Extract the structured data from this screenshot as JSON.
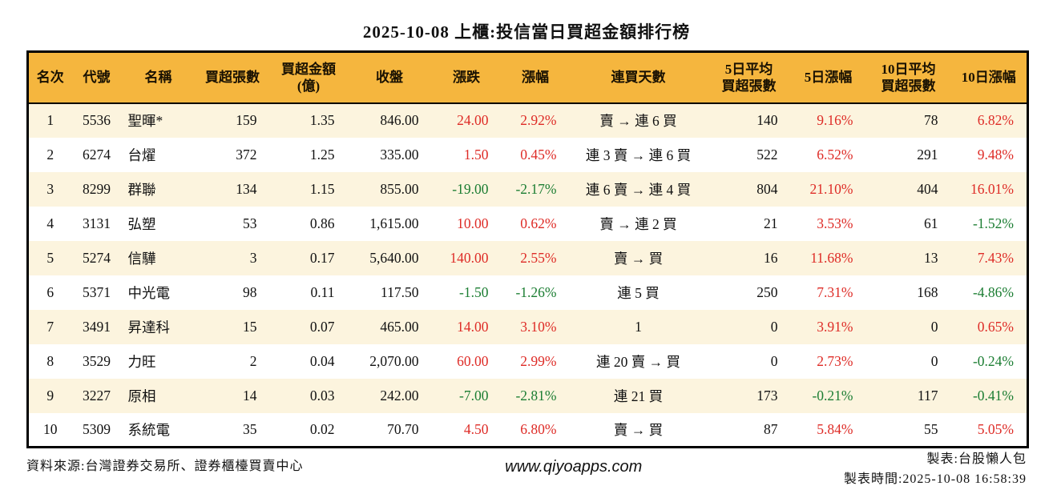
{
  "title": "2025-10-08 上櫃:投信當日買超金額排行榜",
  "colors": {
    "header_bg": "#F5B63E",
    "row_alt_bg": "#FCF4DE",
    "up_red": "#DE2B26",
    "down_green": "#1B7D32"
  },
  "table": {
    "columns": [
      {
        "key": "rank",
        "label": "名次",
        "align": "center"
      },
      {
        "key": "code",
        "label": "代號",
        "align": "center"
      },
      {
        "key": "name",
        "label": "名稱",
        "align": "left"
      },
      {
        "key": "net_buy_lots",
        "label": "買超張數",
        "align": "right"
      },
      {
        "key": "net_buy_amount",
        "label": "買超金額\n(億)",
        "align": "right"
      },
      {
        "key": "close",
        "label": "收盤",
        "align": "right"
      },
      {
        "key": "change",
        "label": "漲跌",
        "align": "right",
        "signed": true
      },
      {
        "key": "change_pct",
        "label": "漲幅",
        "align": "right",
        "signed": true
      },
      {
        "key": "streak",
        "label": "連買天數",
        "align": "center"
      },
      {
        "key": "d5_avg_lots",
        "label": "5日平均\n買超張數",
        "align": "right"
      },
      {
        "key": "d5_pct",
        "label": "5日漲幅",
        "align": "right",
        "signed": true
      },
      {
        "key": "d10_avg_lots",
        "label": "10日平均\n買超張數",
        "align": "right"
      },
      {
        "key": "d10_pct",
        "label": "10日漲幅",
        "align": "right",
        "signed": true
      }
    ],
    "rows": [
      {
        "rank": "1",
        "code": "5536",
        "name": "聖暉*",
        "net_buy_lots": "159",
        "net_buy_amount": "1.35",
        "close": "846.00",
        "change": "24.00",
        "change_pct": "2.92%",
        "streak": "賣 → 連 6 買",
        "d5_avg_lots": "140",
        "d5_pct": "9.16%",
        "d10_avg_lots": "78",
        "d10_pct": "6.82%"
      },
      {
        "rank": "2",
        "code": "6274",
        "name": "台燿",
        "net_buy_lots": "372",
        "net_buy_amount": "1.25",
        "close": "335.00",
        "change": "1.50",
        "change_pct": "0.45%",
        "streak": "連 3 賣 → 連 6 買",
        "d5_avg_lots": "522",
        "d5_pct": "6.52%",
        "d10_avg_lots": "291",
        "d10_pct": "9.48%"
      },
      {
        "rank": "3",
        "code": "8299",
        "name": "群聯",
        "net_buy_lots": "134",
        "net_buy_amount": "1.15",
        "close": "855.00",
        "change": "-19.00",
        "change_pct": "-2.17%",
        "streak": "連 6 賣 → 連 4 買",
        "d5_avg_lots": "804",
        "d5_pct": "21.10%",
        "d10_avg_lots": "404",
        "d10_pct": "16.01%"
      },
      {
        "rank": "4",
        "code": "3131",
        "name": "弘塑",
        "net_buy_lots": "53",
        "net_buy_amount": "0.86",
        "close": "1,615.00",
        "change": "10.00",
        "change_pct": "0.62%",
        "streak": "賣 → 連 2 買",
        "d5_avg_lots": "21",
        "d5_pct": "3.53%",
        "d10_avg_lots": "61",
        "d10_pct": "-1.52%"
      },
      {
        "rank": "5",
        "code": "5274",
        "name": "信驊",
        "net_buy_lots": "3",
        "net_buy_amount": "0.17",
        "close": "5,640.00",
        "change": "140.00",
        "change_pct": "2.55%",
        "streak": "賣 → 買",
        "d5_avg_lots": "16",
        "d5_pct": "11.68%",
        "d10_avg_lots": "13",
        "d10_pct": "7.43%"
      },
      {
        "rank": "6",
        "code": "5371",
        "name": "中光電",
        "net_buy_lots": "98",
        "net_buy_amount": "0.11",
        "close": "117.50",
        "change": "-1.50",
        "change_pct": "-1.26%",
        "streak": "連 5 買",
        "d5_avg_lots": "250",
        "d5_pct": "7.31%",
        "d10_avg_lots": "168",
        "d10_pct": "-4.86%"
      },
      {
        "rank": "7",
        "code": "3491",
        "name": "昇達科",
        "net_buy_lots": "15",
        "net_buy_amount": "0.07",
        "close": "465.00",
        "change": "14.00",
        "change_pct": "3.10%",
        "streak": "1",
        "d5_avg_lots": "0",
        "d5_pct": "3.91%",
        "d10_avg_lots": "0",
        "d10_pct": "0.65%"
      },
      {
        "rank": "8",
        "code": "3529",
        "name": "力旺",
        "net_buy_lots": "2",
        "net_buy_amount": "0.04",
        "close": "2,070.00",
        "change": "60.00",
        "change_pct": "2.99%",
        "streak": "連 20 賣 → 買",
        "d5_avg_lots": "0",
        "d5_pct": "2.73%",
        "d10_avg_lots": "0",
        "d10_pct": "-0.24%"
      },
      {
        "rank": "9",
        "code": "3227",
        "name": "原相",
        "net_buy_lots": "14",
        "net_buy_amount": "0.03",
        "close": "242.00",
        "change": "-7.00",
        "change_pct": "-2.81%",
        "streak": "連 21 買",
        "d5_avg_lots": "173",
        "d5_pct": "-0.21%",
        "d10_avg_lots": "117",
        "d10_pct": "-0.41%"
      },
      {
        "rank": "10",
        "code": "5309",
        "name": "系統電",
        "net_buy_lots": "35",
        "net_buy_amount": "0.02",
        "close": "70.70",
        "change": "4.50",
        "change_pct": "6.80%",
        "streak": "賣 → 買",
        "d5_avg_lots": "87",
        "d5_pct": "5.84%",
        "d10_avg_lots": "55",
        "d10_pct": "5.05%"
      }
    ]
  },
  "footer": {
    "source": "資料來源:台灣證券交易所、證券櫃檯買賣中心",
    "website": "www.qiyoapps.com",
    "author": "製表:台股懶人包",
    "generated_at": "製表時間:2025-10-08 16:58:39"
  }
}
